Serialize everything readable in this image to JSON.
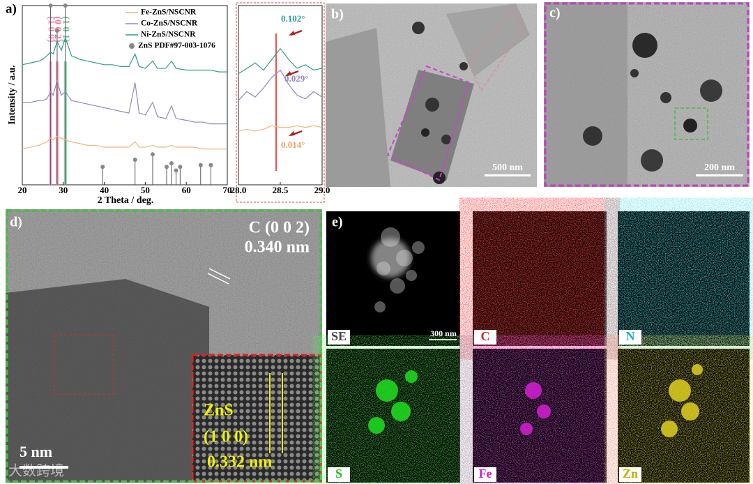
{
  "chart_data": [
    {
      "type": "line",
      "panel_label": "a)",
      "x_label": "2 Theta / deg.",
      "y_label": "Intensity / a.u.",
      "xlim": [
        20,
        70
      ],
      "ylim": [
        0,
        100
      ],
      "xticks": [
        20,
        30,
        40,
        50,
        60,
        70
      ],
      "x": [
        20,
        22,
        24,
        25,
        26,
        26.9,
        27.5,
        28.5,
        29.5,
        30.5,
        32,
        34,
        36,
        38,
        40,
        42,
        44,
        46,
        47.5,
        48.5,
        50,
        51.8,
        53,
        55,
        56.4,
        57.5,
        60,
        62,
        64,
        66,
        68,
        70
      ],
      "series": [
        {
          "name": "Fe-ZnS/NSCNR",
          "color": "#f3b27c",
          "values": [
            20,
            21,
            22,
            23,
            24,
            26,
            25,
            27,
            26,
            25,
            24,
            23,
            22,
            22,
            21,
            21,
            21,
            21,
            24,
            21,
            21,
            22,
            21,
            21,
            22,
            21,
            21,
            21,
            20,
            20,
            20,
            20
          ]
        },
        {
          "name": "Co-ZnS/NSCNR",
          "color": "#8f87c8",
          "values": [
            46,
            46,
            47,
            47,
            48,
            52,
            50,
            58,
            50,
            52,
            47,
            46,
            45,
            44,
            43,
            42,
            41,
            40,
            57,
            40,
            39,
            46,
            38,
            37,
            44,
            37,
            36,
            35,
            35,
            34,
            34,
            34
          ]
        },
        {
          "name": "Ni-ZnS/NSCNR",
          "color": "#2e9e8a",
          "values": [
            67,
            68,
            69,
            70,
            72,
            74,
            73,
            80,
            75,
            82,
            72,
            70,
            69,
            68,
            67,
            67,
            66,
            66,
            73,
            66,
            65,
            69,
            65,
            65,
            69,
            65,
            64,
            64,
            64,
            64,
            63,
            63
          ]
        }
      ],
      "reference": {
        "name": "ZnS PDF#97-003-1076",
        "color": "#555555",
        "x": [
          26.9,
          28.5,
          30.5,
          39.6,
          47.5,
          51.8,
          55.2,
          56.4,
          57.5,
          58.5,
          63.5,
          66
        ],
        "values": [
          100,
          86,
          100,
          10,
          14,
          17,
          10,
          12,
          8,
          10,
          11,
          11
        ]
      },
      "peak_labels": [
        {
          "text": "(1 0 0)",
          "x": 26.9,
          "color": "#f48fbf"
        },
        {
          "text": "(0 0 2)",
          "x": 28.5,
          "color": "#f07f9a"
        },
        {
          "text": "(1 0 1)",
          "x": 30.5,
          "color": "#6cc39a"
        }
      ]
    },
    {
      "type": "line",
      "xlim": [
        28,
        29
      ],
      "ylim": [
        0,
        100
      ],
      "xticks": [
        {
          "value": 28,
          "label": "28.0"
        },
        28.5,
        {
          "value": 29,
          "label": "29.0"
        }
      ],
      "x": [
        28,
        28.1,
        28.2,
        28.3,
        28.4,
        28.5,
        28.6,
        28.7,
        28.8,
        28.9,
        29
      ],
      "series": [
        {
          "name": "Fe-ZnS/NSCNR",
          "color": "#f3b27c",
          "values": [
            30,
            31,
            30,
            31,
            33,
            32,
            32,
            33,
            32,
            33,
            32
          ]
        },
        {
          "name": "Co-ZnS/NSCNR",
          "color": "#8f87c8",
          "values": [
            47,
            52,
            49,
            54,
            60,
            64,
            56,
            50,
            48,
            52,
            49
          ]
        },
        {
          "name": "Ni-ZnS/NSCNR",
          "color": "#2e9e8a",
          "values": [
            62,
            65,
            68,
            64,
            70,
            76,
            70,
            65,
            67,
            64,
            65
          ]
        }
      ],
      "ref_line": 28.45,
      "annotations": [
        {
          "text": "0.102°",
          "color": "#2e9e9e"
        },
        {
          "text": "0.029°",
          "color": "#8f87c8"
        },
        {
          "text": "0.014°",
          "color": "#f0a060"
        }
      ]
    }
  ],
  "panels": {
    "b": {
      "label": "b)",
      "scale": "500 nm"
    },
    "c": {
      "label": "c)",
      "scale": "200 nm"
    },
    "d": {
      "label": "d)",
      "scale": "5 nm",
      "plane": "C (0 0 2)",
      "spacing": "0.340 nm",
      "inset": {
        "material": "ZnS",
        "plane": "(1 0 0)",
        "spacing": "0.332 nm"
      }
    },
    "e": {
      "label": "e)",
      "scale": "300 nm",
      "tiles": [
        "SE",
        "C",
        "N",
        "S",
        "Fe",
        "Zn"
      ]
    }
  },
  "watermark": "大数跨境"
}
